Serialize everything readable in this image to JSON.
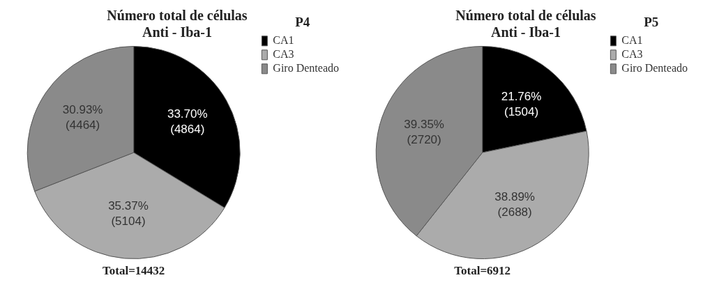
{
  "chart_data": [
    {
      "type": "pie",
      "title": "Número total de células\nAnti - Iba-1",
      "legend_title": "P4",
      "legend": "top right",
      "categories": [
        "CA1",
        "CA3",
        "Giro Denteado"
      ],
      "values": [
        4864,
        5104,
        4464
      ],
      "colors": [
        "#000000",
        "#ababab",
        "#8a8a8a"
      ],
      "value_labels": [
        "33.70%\n(4864)",
        "35.37%\n(5104)",
        "30.93%\n(4464)"
      ],
      "annotations": [
        "Total=14432"
      ]
    },
    {
      "type": "pie",
      "title": "Número total de células\nAnti - Iba-1",
      "legend_title": "P5",
      "legend": "top right",
      "categories": [
        "CA1",
        "CA3",
        "Giro Denteado"
      ],
      "values": [
        1504,
        2688,
        2720
      ],
      "colors": [
        "#000000",
        "#ababab",
        "#8a8a8a"
      ],
      "value_labels": [
        "21.76%\n(1504)",
        "38.89%\n(2688)",
        "39.35%\n(2720)"
      ],
      "annotations": [
        "Total=6912"
      ]
    }
  ]
}
